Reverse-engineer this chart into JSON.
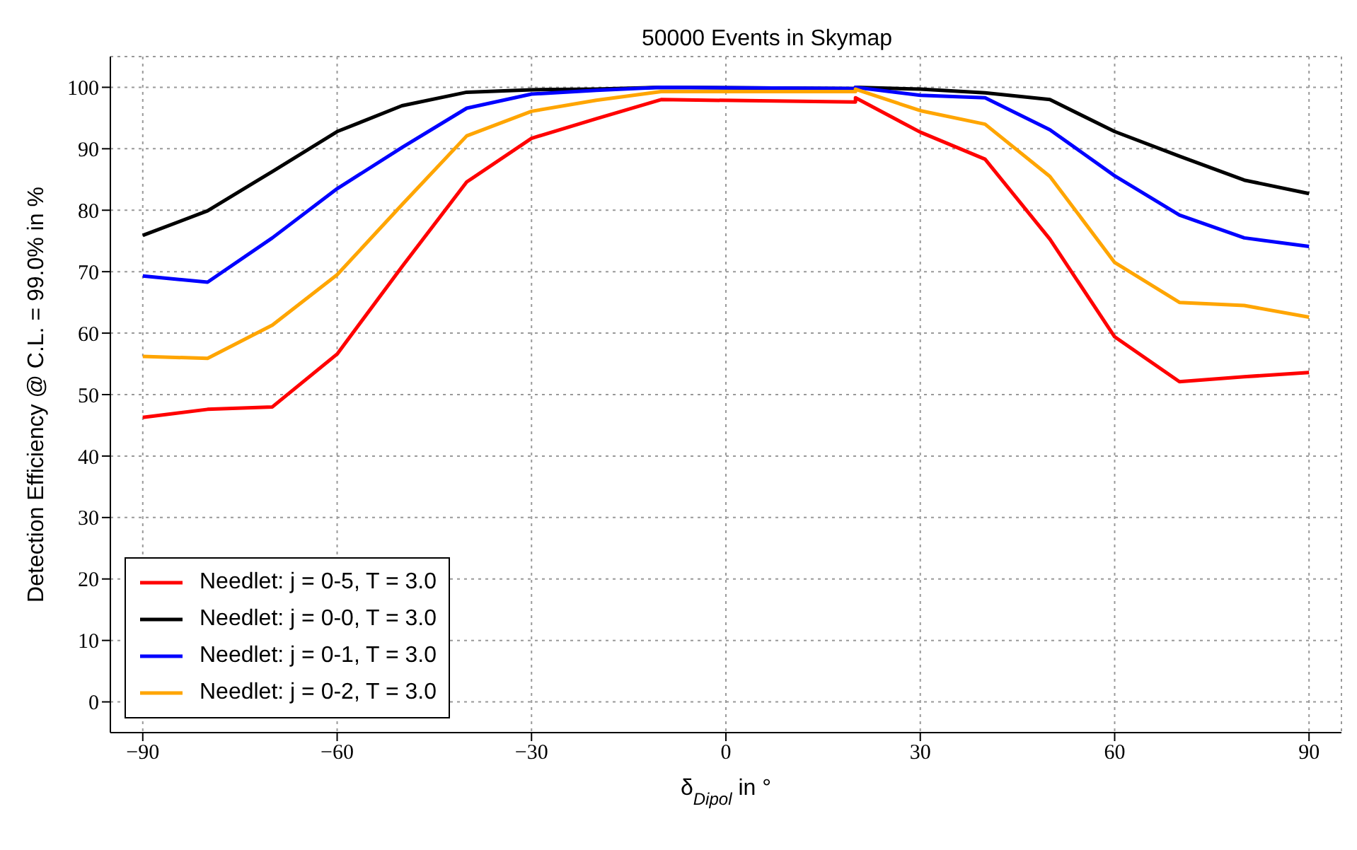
{
  "chart_data": {
    "type": "line",
    "title": "50000 Events in Skymap",
    "xlabel": "δ$_{Dipol}$ in °",
    "ylabel": "Detection Efficiency @ C.L. = 99.0% in %",
    "x": [
      -90,
      -80,
      -70,
      -60,
      -50,
      -40,
      -30,
      -20,
      -10,
      20,
      20,
      30,
      40,
      50,
      60,
      70,
      80,
      90
    ],
    "series": [
      {
        "name": "Needlet: j = 0-5, T = 3.0",
        "color": "#ff0000",
        "values": [
          46.3,
          47.6,
          48.0,
          56.6,
          70.8,
          84.6,
          91.7,
          94.9,
          98.0,
          97.6,
          98.3,
          92.7,
          88.3,
          75.3,
          59.4,
          52.1,
          52.9,
          53.6
        ]
      },
      {
        "name": "Needlet: j = 0-0, T = 3.0",
        "color": "#000000",
        "values": [
          75.9,
          79.9,
          86.3,
          92.8,
          97.0,
          99.2,
          99.6,
          99.7,
          100.0,
          99.8,
          100.0,
          99.7,
          99.1,
          98.0,
          92.8,
          88.8,
          84.9,
          82.7
        ]
      },
      {
        "name": "Needlet: j = 0-1, T = 3.0",
        "color": "#0000ff",
        "values": [
          69.3,
          68.3,
          75.5,
          83.5,
          90.2,
          96.6,
          98.9,
          99.5,
          100.0,
          99.8,
          100.0,
          98.7,
          98.3,
          93.1,
          85.6,
          79.2,
          75.5,
          74.1
        ]
      },
      {
        "name": "Needlet: j = 0-2, T = 3.0",
        "color": "#ffa500",
        "values": [
          56.2,
          55.9,
          61.3,
          69.5,
          80.9,
          92.1,
          96.1,
          97.9,
          99.3,
          99.3,
          99.7,
          96.2,
          94.0,
          85.5,
          71.5,
          65.0,
          64.5,
          62.6
        ]
      }
    ],
    "xlim": [
      -95,
      95
    ],
    "xticks": [
      {
        "value": -90,
        "label": "−90"
      },
      {
        "value": -60,
        "label": "−60"
      },
      {
        "value": -30,
        "label": "−30"
      },
      0,
      30,
      60,
      90
    ],
    "ylim": [
      -5,
      105
    ],
    "yticks": [
      0,
      10,
      20,
      30,
      40,
      50,
      60,
      70,
      80,
      90,
      100
    ],
    "grid": true,
    "legend": "bottom left",
    "marker": "none",
    "line_style": "solid"
  }
}
